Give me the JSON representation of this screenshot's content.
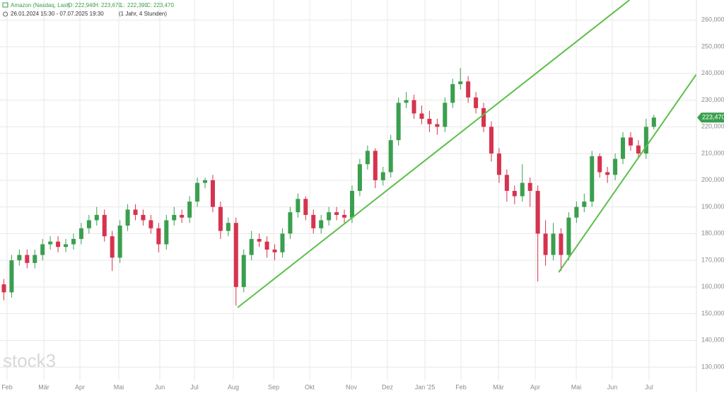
{
  "chart_data": {
    "type": "candlestick",
    "instrument": "Amazon (Nasdaq, Last)",
    "legend_ohlc": [
      {
        "name": "O:",
        "value": 222940,
        "label": "222,940"
      },
      {
        "name": "H:",
        "value": 223670,
        "label": "223,670"
      },
      {
        "name": "L:",
        "value": 222390,
        "label": "222,390"
      },
      {
        "name": "C:",
        "value": 223470,
        "label": "223,470"
      }
    ],
    "range_text": "26.01.2024 15:30 - 07.07.2025 19:30",
    "range_note": "(1 Jahr, 4 Stunden)",
    "watermark": "stock3",
    "up_color": "#3a9f4e",
    "down_color": "#d6334f",
    "grid": true,
    "xlim": [
      -0.5,
      89.5
    ],
    "ylim": [
      125000,
      267500
    ],
    "xticks": [
      {
        "value": 0.41,
        "label": "Feb"
      },
      {
        "value": 5.17,
        "label": "Mär"
      },
      {
        "value": 9.83,
        "label": "Apr"
      },
      {
        "value": 14.85,
        "label": "Mai"
      },
      {
        "value": 20.15,
        "label": "Jun"
      },
      {
        "value": 24.63,
        "label": "Jul"
      },
      {
        "value": 29.65,
        "label": "Aug"
      },
      {
        "value": 34.86,
        "label": "Sep"
      },
      {
        "value": 39.52,
        "label": "Okt"
      },
      {
        "value": 44.91,
        "label": "Nov"
      },
      {
        "value": 49.57,
        "label": "Dez"
      },
      {
        "value": 54.42,
        "label": "Jan '25"
      },
      {
        "value": 59.08,
        "label": "Feb"
      },
      {
        "value": 63.92,
        "label": "Mär"
      },
      {
        "value": 68.67,
        "label": "Apr"
      },
      {
        "value": 73.97,
        "label": "Mai"
      },
      {
        "value": 78.63,
        "label": "Jun"
      },
      {
        "value": 83.38,
        "label": "Jul"
      }
    ],
    "yticks": [
      {
        "value": 130000,
        "label": "130,000"
      },
      {
        "value": 140000,
        "label": "140,000"
      },
      {
        "value": 150000,
        "label": "150,000"
      },
      {
        "value": 160000,
        "label": "160,000"
      },
      {
        "value": 170000,
        "label": "170,000"
      },
      {
        "value": 180000,
        "label": "180,000"
      },
      {
        "value": 190000,
        "label": "190,000"
      },
      {
        "value": 200000,
        "label": "200,000"
      },
      {
        "value": 210000,
        "label": "210,000"
      },
      {
        "value": 220000,
        "label": "220,000"
      },
      {
        "value": 230000,
        "label": "230,000"
      },
      {
        "value": 240000,
        "label": "240,000"
      },
      {
        "value": 250000,
        "label": "250,000"
      },
      {
        "value": 260000,
        "label": "260,000"
      }
    ],
    "last_price": {
      "value": 223470,
      "label": "223,470"
    },
    "candles": {
      "open": [
        161000,
        158000,
        170000,
        172000,
        169000,
        172000,
        176000,
        177000,
        175000,
        176000,
        178000,
        182000,
        185000,
        187000,
        179000,
        171000,
        183000,
        189000,
        187000,
        185000,
        182000,
        176000,
        185000,
        187000,
        186000,
        192000,
        199000,
        200000,
        190000,
        181000,
        184000,
        160000,
        172000,
        178000,
        177000,
        174000,
        173000,
        180000,
        188000,
        193000,
        187000,
        182000,
        185000,
        188000,
        187000,
        186000,
        196000,
        206000,
        211000,
        200000,
        203000,
        215000,
        229000,
        230000,
        225000,
        223000,
        221000,
        220000,
        229000,
        236000,
        237000,
        231000,
        227000,
        220000,
        210000,
        202000,
        196000,
        194000,
        199000,
        196000,
        180000,
        172000,
        180000,
        172000,
        186000,
        190000,
        192000,
        209000,
        203000,
        202000,
        208000,
        216000,
        213000,
        210000,
        220000
      ],
      "high": [
        163000,
        172000,
        174000,
        174000,
        174000,
        178000,
        179000,
        179000,
        178000,
        180000,
        184000,
        187000,
        190000,
        189000,
        181000,
        185000,
        191000,
        191000,
        189000,
        187000,
        184000,
        187000,
        190000,
        189000,
        194000,
        201000,
        201000,
        202000,
        192000,
        186000,
        186000,
        174000,
        181000,
        180000,
        179000,
        176000,
        182000,
        190000,
        195000,
        194000,
        189000,
        187000,
        190000,
        190000,
        189000,
        198000,
        208000,
        213000,
        212000,
        205000,
        217000,
        231000,
        233000,
        232000,
        228000,
        226000,
        223000,
        231000,
        238000,
        242000,
        239000,
        233000,
        229000,
        222000,
        212000,
        204000,
        198000,
        206000,
        201000,
        198000,
        185000,
        184000,
        182000,
        188000,
        192000,
        195000,
        211000,
        210000,
        205000,
        210000,
        218000,
        218000,
        215000,
        223000,
        224500
      ],
      "low": [
        155000,
        156000,
        168000,
        167000,
        167000,
        170000,
        174000,
        173000,
        173000,
        174000,
        176000,
        180000,
        183000,
        177000,
        166000,
        169000,
        181000,
        185000,
        183000,
        180000,
        173000,
        174000,
        183000,
        184000,
        184000,
        190000,
        197000,
        188000,
        178000,
        179000,
        153000,
        158000,
        170000,
        175000,
        171000,
        170000,
        171000,
        178000,
        186000,
        185000,
        180000,
        180000,
        183000,
        185000,
        184000,
        184000,
        194000,
        204000,
        197000,
        198000,
        201000,
        213000,
        227000,
        223000,
        221000,
        218000,
        217000,
        218000,
        227000,
        234000,
        229000,
        225000,
        218000,
        207000,
        199000,
        192000,
        191000,
        192000,
        190000,
        162000,
        168000,
        170000,
        166000,
        170000,
        184000,
        188000,
        190000,
        201000,
        199000,
        200000,
        206000,
        211000,
        208000,
        208000,
        219000
      ],
      "close": [
        158000,
        170000,
        172000,
        169000,
        172000,
        176000,
        177000,
        175000,
        176000,
        178000,
        182000,
        185000,
        187000,
        179000,
        171000,
        183000,
        189000,
        187000,
        185000,
        182000,
        176000,
        185000,
        187000,
        186000,
        192000,
        199000,
        200000,
        190000,
        181000,
        184000,
        160000,
        172000,
        178000,
        177000,
        174000,
        173000,
        180000,
        188000,
        193000,
        187000,
        182000,
        185000,
        188000,
        187000,
        186000,
        196000,
        206000,
        211000,
        200000,
        203000,
        215000,
        229000,
        230000,
        225000,
        223000,
        221000,
        220000,
        229000,
        236000,
        237000,
        231000,
        227000,
        220000,
        210000,
        202000,
        196000,
        194000,
        199000,
        196000,
        180000,
        172000,
        180000,
        172000,
        186000,
        190000,
        192000,
        209000,
        203000,
        202000,
        208000,
        216000,
        213000,
        210000,
        220000,
        223470
      ]
    },
    "trendlines": [
      {
        "color": "#5cbf4a",
        "x": [
          30.2,
          80.85
        ],
        "y": [
          152280,
          267500
        ]
      },
      {
        "color": "#5cbf4a",
        "x": [
          71.7,
          89.5
        ],
        "y": [
          165525,
          239690
        ]
      }
    ]
  }
}
